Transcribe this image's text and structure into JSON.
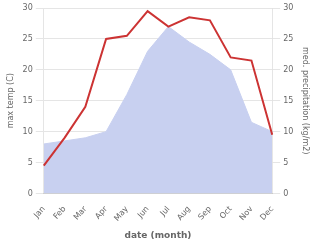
{
  "chart_data": {
    "type": "line",
    "xlabel": "date (month)",
    "ylabel": "max temp (C)",
    "y2label": "med. precipitation (kg/m2)",
    "categories": [
      "Jan",
      "Feb",
      "Mar",
      "Apr",
      "May",
      "Jun",
      "Jul",
      "Aug",
      "Sep",
      "Oct",
      "Nov",
      "Dec"
    ],
    "series": [
      {
        "type": "area",
        "color": "#c8d0f0",
        "axis": "y2",
        "values": [
          8.0,
          8.5,
          9.0,
          10.0,
          16.0,
          23.0,
          27.0,
          24.5,
          22.5,
          20.0,
          11.5,
          10.0
        ]
      },
      {
        "type": "line",
        "color": "#cc3333",
        "values": [
          4.5,
          9.0,
          14.0,
          25.0,
          25.5,
          29.5,
          27.0,
          28.5,
          28.0,
          22.0,
          21.5,
          9.5
        ]
      }
    ],
    "ylim": [
      0,
      30
    ],
    "yticks": [
      0,
      5,
      10,
      15,
      20,
      25,
      30
    ],
    "y2lim": [
      0,
      30
    ],
    "y2ticks": [
      0,
      5,
      10,
      15,
      20,
      25,
      30
    ],
    "grid": true
  }
}
